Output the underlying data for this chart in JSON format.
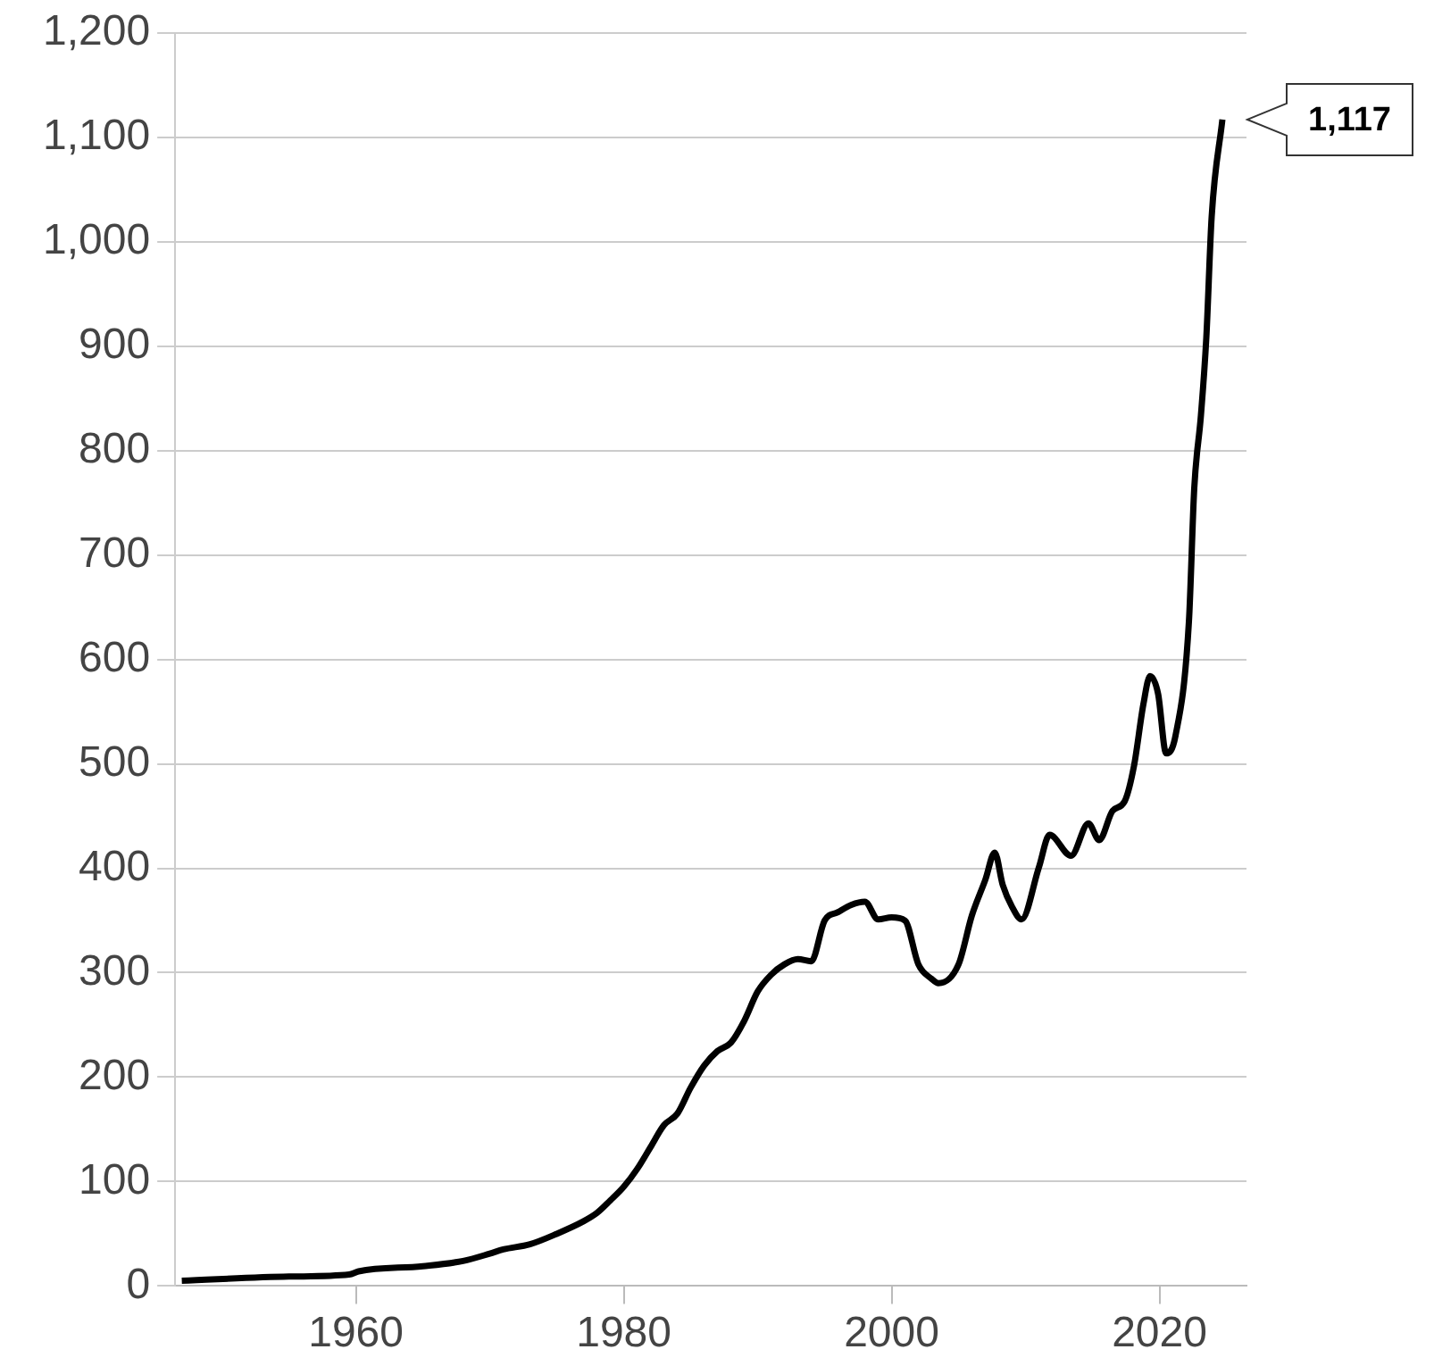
{
  "chart_data": {
    "type": "line",
    "x": [
      1947,
      1955,
      1959.5,
      1960.2,
      1965,
      1968,
      1970,
      1971,
      1973,
      1975,
      1977,
      1978,
      1979,
      1980,
      1981,
      1982,
      1983,
      1984,
      1985,
      1986,
      1987,
      1988,
      1989,
      1990,
      1991,
      1992,
      1993,
      1994,
      1995,
      1996,
      1997,
      1998,
      1999,
      2000,
      2001,
      2002,
      2003,
      2003.5,
      2005,
      2006,
      2007,
      2007.7,
      2008.3,
      2009,
      2009.7,
      2011,
      2011.8,
      2013.4,
      2014.7,
      2015.5,
      2016.5,
      2017.4,
      2018.1,
      2018.8,
      2019.3,
      2019.9,
      2020.5,
      2021.2,
      2022.2,
      2022.6,
      2023.1,
      2023.5,
      2023.9,
      2024.7
    ],
    "series": [
      {
        "color": "#000000",
        "values": [
          5,
          9,
          11,
          14,
          19,
          24,
          31,
          35,
          40,
          50,
          62,
          70,
          82,
          95,
          112,
          133,
          154,
          165,
          190,
          211,
          225,
          233,
          254,
          282,
          298,
          308,
          313,
          311,
          350,
          358,
          365,
          368,
          351,
          353,
          350,
          308,
          294,
          290,
          308,
          355,
          389,
          415,
          384,
          363,
          351,
          401,
          432,
          412,
          443,
          427,
          455,
          464,
          498,
          557,
          584,
          567,
          510,
          527,
          636,
          764,
          834,
          908,
          1024,
          1117
        ]
      }
    ],
    "xlim": [
      1946.5,
      2026.5
    ],
    "xticks": [
      1960,
      1980,
      2000,
      2020
    ],
    "ylim": [
      0,
      1200
    ],
    "yticks": [
      0,
      100,
      200,
      300,
      400,
      500,
      600,
      700,
      800,
      900,
      {
        "value": 1000,
        "label": "1,000"
      },
      {
        "value": 1100,
        "label": "1,100"
      },
      {
        "value": 1200,
        "label": "1,200"
      }
    ],
    "grid": "y",
    "legend": false,
    "marker": "none",
    "line_style": "solid",
    "annotations": [
      {
        "text": "1,117",
        "x": 2024.7,
        "y": 1117
      }
    ]
  }
}
